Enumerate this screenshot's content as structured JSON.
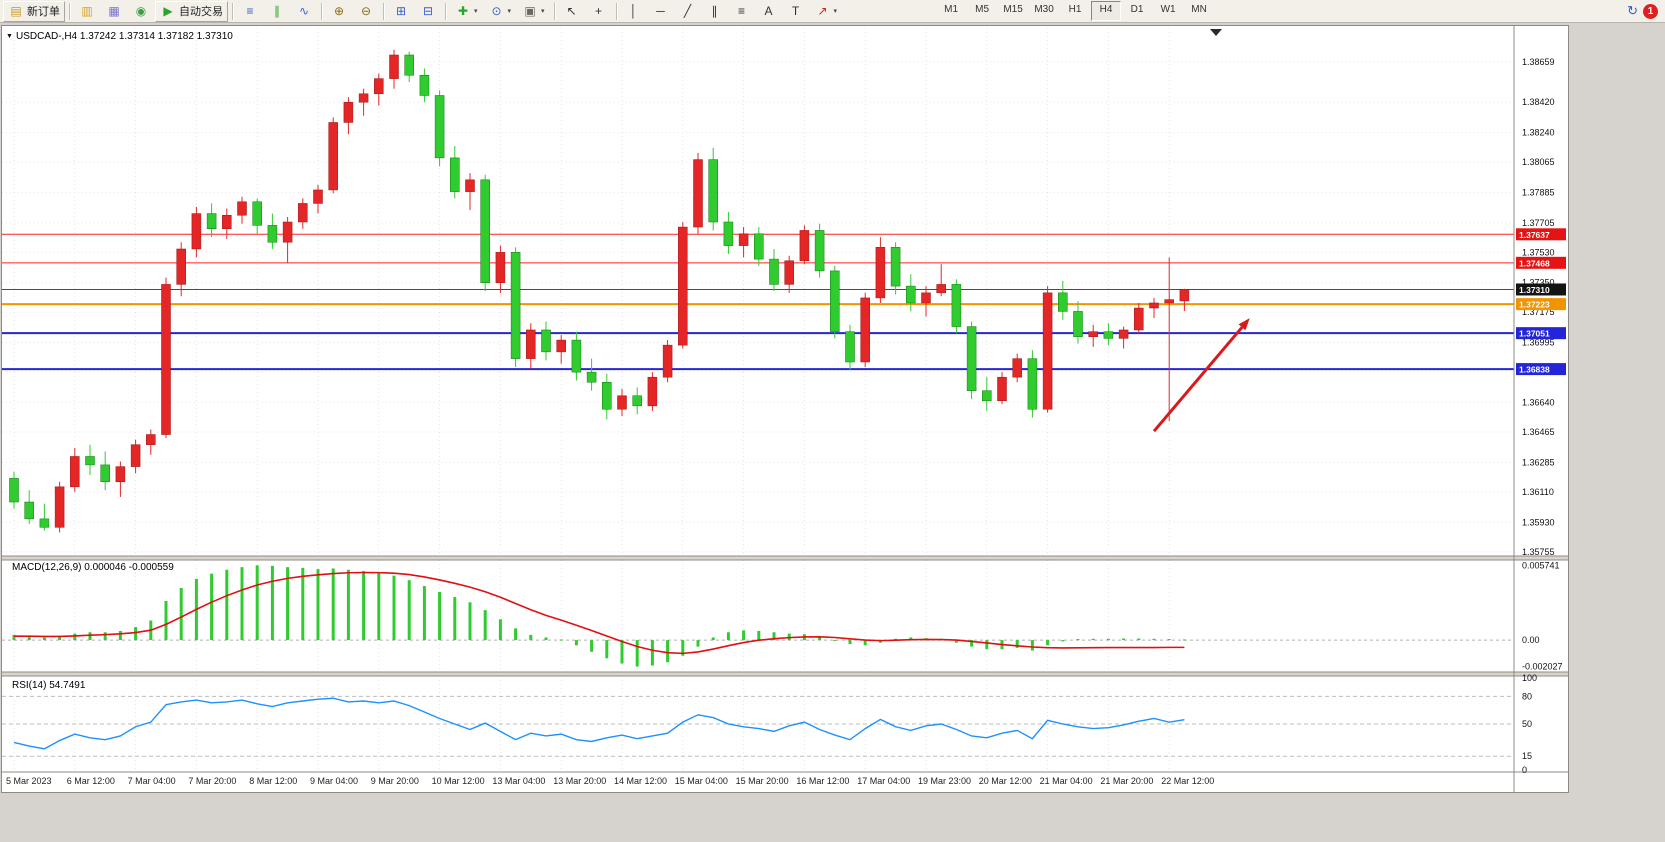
{
  "toolbar": {
    "buttons": [
      {
        "name": "new-order-button",
        "glyph": "▤",
        "color": "#c99a1e",
        "label": "新订单",
        "sep_after": true
      },
      {
        "name": "charts-stack-icon",
        "glyph": "▥",
        "color": "#d9a21f"
      },
      {
        "name": "profiles-icon",
        "glyph": "▦",
        "color": "#7a6fd0"
      },
      {
        "name": "navigator-icon",
        "glyph": "◉",
        "color": "#3d9e46"
      },
      {
        "name": "autotrade-button",
        "glyph": "▶",
        "color": "#2aa52a",
        "label": "自动交易",
        "sep_after": true
      },
      {
        "name": "bar-chart-button",
        "glyph": "≡",
        "color": "#3a5fcd"
      },
      {
        "name": "candlestick-chart-button",
        "glyph": "∥",
        "color": "#2aa52a"
      },
      {
        "name": "line-chart-button",
        "glyph": "∿",
        "color": "#3a5fcd",
        "sep_after": true
      },
      {
        "name": "zoom-in-button",
        "glyph": "⊕",
        "color": "#8a6d1c"
      },
      {
        "name": "zoom-out-button",
        "glyph": "⊖",
        "color": "#8a6d1c",
        "sep_after": true
      },
      {
        "name": "tile-windows-button",
        "glyph": "⊞",
        "color": "#3a5fcd"
      },
      {
        "name": "cascade-windows-button",
        "glyph": "⊟",
        "color": "#3a5fcd",
        "sep_after": true
      },
      {
        "name": "indicators-button",
        "glyph": "✚",
        "color": "#2aa52a",
        "caret": true
      },
      {
        "name": "periods-button",
        "glyph": "⊙",
        "color": "#3a5fcd",
        "caret": true
      },
      {
        "name": "templates-button",
        "glyph": "▣",
        "color": "#6b675f",
        "caret": true,
        "sep_after": true
      },
      {
        "name": "cursor-button",
        "glyph": "↖",
        "color": "#333333"
      },
      {
        "name": "crosshair-button",
        "glyph": "+",
        "color": "#333333",
        "sep_after": true
      },
      {
        "name": "vline-button",
        "glyph": "│",
        "color": "#333333"
      },
      {
        "name": "hline-button",
        "glyph": "─",
        "color": "#333333"
      },
      {
        "name": "trendline-button",
        "glyph": "╱",
        "color": "#333333"
      },
      {
        "name": "channel-button",
        "glyph": "∥",
        "color": "#333333"
      },
      {
        "name": "fibonacci-button",
        "glyph": "≡",
        "color": "#333333"
      },
      {
        "name": "text-button",
        "glyph": "A",
        "color": "#333333"
      },
      {
        "name": "label-button",
        "glyph": "T",
        "color": "#333333"
      },
      {
        "name": "arrows-button",
        "glyph": "↗",
        "color": "#cc2222",
        "caret": true
      }
    ],
    "timeframes": [
      "M1",
      "M5",
      "M15",
      "M30",
      "H1",
      "H4",
      "D1",
      "W1",
      "MN"
    ],
    "active_timeframe": "H4",
    "help_glyph": "↻",
    "notification_count": "1"
  },
  "icons": {
    "collapse_arrow": "▼"
  },
  "chart_data": {
    "type": "candlestick",
    "symbol": "USDCAD",
    "timeframe": "H4",
    "title": "USDCAD-,H4",
    "ohlc_line": "USDCAD-,H4  1.37242 1.37314 1.37182 1.37310",
    "open": 1.37242,
    "high": 1.37314,
    "low": 1.37182,
    "close": 1.3731,
    "bull_color": "#e42626",
    "bear_color": "#2fcb2f",
    "price_axis_labels": [
      "1.38659",
      "1.38420",
      "1.38240",
      "1.38065",
      "1.37885",
      "1.37705",
      "1.37530",
      "1.37350",
      "1.37175",
      "1.36995",
      "1.36820",
      "1.36640",
      "1.36465",
      "1.36285",
      "1.36110",
      "1.35930",
      "1.35755"
    ],
    "time_axis_labels": [
      "5 Mar 2023",
      "6 Mar 12:00",
      "7 Mar 04:00",
      "7 Mar 20:00",
      "8 Mar 12:00",
      "9 Mar 04:00",
      "9 Mar 20:00",
      "10 Mar 12:00",
      "13 Mar 04:00",
      "13 Mar 20:00",
      "14 Mar 12:00",
      "15 Mar 04:00",
      "15 Mar 20:00",
      "16 Mar 12:00",
      "17 Mar 04:00",
      "19 Mar 23:00",
      "20 Mar 12:00",
      "21 Mar 04:00",
      "21 Mar 20:00",
      "22 Mar 12:00"
    ],
    "bars_per_label": 4,
    "hlines": [
      {
        "price": 1.37637,
        "label": "1.37637",
        "color": "#ff2020",
        "width": 1,
        "tag": "#e41414"
      },
      {
        "price": 1.37468,
        "label": "1.37468",
        "color": "#ff2020",
        "width": 1,
        "tag": "#e41414"
      },
      {
        "price": 1.3731,
        "label": "1.37310",
        "color": "#4a4a4a",
        "width": 1,
        "tag": "#141414"
      },
      {
        "price": 1.37223,
        "label": "1.37223",
        "color": "#f29400",
        "width": 2,
        "tag": "#f29400"
      },
      {
        "price": 1.37051,
        "label": "1.37051",
        "color": "#2424d8",
        "width": 2,
        "tag": "#2424d8"
      },
      {
        "price": 1.36838,
        "label": "1.36838",
        "color": "#2424d8",
        "width": 2,
        "tag": "#2424d8"
      }
    ],
    "arrow": {
      "from_bar": 75,
      "from_price": 1.3647,
      "to_bar": 81.3,
      "to_price": 1.3714,
      "color": "#d81a1a"
    },
    "candles": [
      [
        1.3619,
        1.3623,
        1.3601,
        1.3605
      ],
      [
        1.3605,
        1.3612,
        1.3592,
        1.3595
      ],
      [
        1.3595,
        1.3604,
        1.3588,
        1.359
      ],
      [
        1.359,
        1.3617,
        1.3587,
        1.3614
      ],
      [
        1.3614,
        1.3637,
        1.3611,
        1.3632
      ],
      [
        1.3632,
        1.3639,
        1.3621,
        1.3627
      ],
      [
        1.3627,
        1.3635,
        1.3612,
        1.3617
      ],
      [
        1.3617,
        1.3629,
        1.3608,
        1.3626
      ],
      [
        1.3626,
        1.3642,
        1.3622,
        1.3639
      ],
      [
        1.3639,
        1.3648,
        1.3633,
        1.3645
      ],
      [
        1.3645,
        1.3738,
        1.3643,
        1.3734
      ],
      [
        1.3734,
        1.3759,
        1.3727,
        1.3755
      ],
      [
        1.3755,
        1.378,
        1.375,
        1.3776
      ],
      [
        1.3776,
        1.3782,
        1.3762,
        1.3767
      ],
      [
        1.3767,
        1.3779,
        1.3761,
        1.3775
      ],
      [
        1.3775,
        1.3786,
        1.377,
        1.3783
      ],
      [
        1.3783,
        1.3785,
        1.3764,
        1.3769
      ],
      [
        1.3769,
        1.3776,
        1.3755,
        1.3759
      ],
      [
        1.3759,
        1.3774,
        1.3747,
        1.3771
      ],
      [
        1.3771,
        1.3785,
        1.3767,
        1.3782
      ],
      [
        1.3782,
        1.3793,
        1.3776,
        1.379
      ],
      [
        1.379,
        1.3833,
        1.3788,
        1.383
      ],
      [
        1.383,
        1.3845,
        1.3823,
        1.3842
      ],
      [
        1.3842,
        1.385,
        1.3834,
        1.3847
      ],
      [
        1.3847,
        1.3859,
        1.384,
        1.3856
      ],
      [
        1.3856,
        1.3873,
        1.385,
        1.387
      ],
      [
        1.387,
        1.3872,
        1.3854,
        1.3858
      ],
      [
        1.3858,
        1.3862,
        1.3842,
        1.3846
      ],
      [
        1.3846,
        1.3849,
        1.3804,
        1.3809
      ],
      [
        1.3809,
        1.3816,
        1.3785,
        1.3789
      ],
      [
        1.3789,
        1.38,
        1.3778,
        1.3796
      ],
      [
        1.3796,
        1.3799,
        1.373,
        1.3735
      ],
      [
        1.3735,
        1.3757,
        1.3729,
        1.3753
      ],
      [
        1.3753,
        1.3756,
        1.3685,
        1.369
      ],
      [
        1.369,
        1.3711,
        1.3684,
        1.3707
      ],
      [
        1.3707,
        1.3712,
        1.3689,
        1.3694
      ],
      [
        1.3694,
        1.3704,
        1.3687,
        1.3701
      ],
      [
        1.3701,
        1.3706,
        1.3677,
        1.3682
      ],
      [
        1.3682,
        1.369,
        1.3671,
        1.3676
      ],
      [
        1.3676,
        1.3681,
        1.3654,
        1.366
      ],
      [
        1.366,
        1.3672,
        1.3656,
        1.3668
      ],
      [
        1.3668,
        1.3673,
        1.3657,
        1.3662
      ],
      [
        1.3662,
        1.3682,
        1.3659,
        1.3679
      ],
      [
        1.3679,
        1.3701,
        1.3676,
        1.3698
      ],
      [
        1.3698,
        1.3771,
        1.3696,
        1.3768
      ],
      [
        1.3768,
        1.3812,
        1.3764,
        1.3808
      ],
      [
        1.3808,
        1.3815,
        1.3766,
        1.3771
      ],
      [
        1.3771,
        1.3777,
        1.3752,
        1.3757
      ],
      [
        1.3757,
        1.3768,
        1.375,
        1.3764
      ],
      [
        1.3764,
        1.3768,
        1.3745,
        1.3749
      ],
      [
        1.3749,
        1.3755,
        1.373,
        1.3734
      ],
      [
        1.3734,
        1.3751,
        1.3729,
        1.3748
      ],
      [
        1.3748,
        1.3769,
        1.3746,
        1.3766
      ],
      [
        1.3766,
        1.377,
        1.3738,
        1.3742
      ],
      [
        1.3742,
        1.3745,
        1.3702,
        1.3706
      ],
      [
        1.3706,
        1.371,
        1.3683,
        1.3688
      ],
      [
        1.3688,
        1.3729,
        1.3685,
        1.3726
      ],
      [
        1.3726,
        1.3762,
        1.3723,
        1.3756
      ],
      [
        1.3756,
        1.3759,
        1.3728,
        1.3733
      ],
      [
        1.3733,
        1.374,
        1.3718,
        1.3723
      ],
      [
        1.3723,
        1.3733,
        1.3715,
        1.3729
      ],
      [
        1.3729,
        1.3746,
        1.3727,
        1.3734
      ],
      [
        1.3734,
        1.3737,
        1.3705,
        1.3709
      ],
      [
        1.3709,
        1.3712,
        1.3666,
        1.3671
      ],
      [
        1.3671,
        1.3679,
        1.3659,
        1.3665
      ],
      [
        1.3665,
        1.3682,
        1.3663,
        1.3679
      ],
      [
        1.3679,
        1.3693,
        1.3676,
        1.369
      ],
      [
        1.369,
        1.3695,
        1.3655,
        1.366
      ],
      [
        1.366,
        1.3733,
        1.3658,
        1.3729
      ],
      [
        1.3729,
        1.3736,
        1.3713,
        1.3718
      ],
      [
        1.3718,
        1.3724,
        1.3699,
        1.3703
      ],
      [
        1.3703,
        1.371,
        1.3697,
        1.3706
      ],
      [
        1.3706,
        1.3711,
        1.3698,
        1.3702
      ],
      [
        1.3702,
        1.3709,
        1.3696,
        1.3707
      ],
      [
        1.3707,
        1.3723,
        1.3705,
        1.372
      ],
      [
        1.372,
        1.3726,
        1.3714,
        1.3723
      ],
      [
        1.3723,
        1.375,
        1.3653,
        1.3725
      ],
      [
        1.37242,
        1.37314,
        1.37182,
        1.3731
      ]
    ],
    "indicators": {
      "macd": {
        "label": "MACD(12,26,9) 0.000046 -0.000559",
        "hist_color": "#2fcb2f",
        "signal_color": "#e01010",
        "axis_labels": [
          "0.005741",
          "0.00",
          "-0.002027"
        ],
        "axis_values": [
          0.005741,
          0,
          -0.002027
        ],
        "histogram": [
          0.0004,
          0.0003,
          0.0002,
          0.0003,
          0.0005,
          0.0006,
          0.0006,
          0.0007,
          0.001,
          0.0015,
          0.003,
          0.004,
          0.0047,
          0.0051,
          0.0054,
          0.0056,
          0.00574,
          0.0057,
          0.0056,
          0.00555,
          0.00545,
          0.0055,
          0.0054,
          0.0053,
          0.00515,
          0.00495,
          0.0046,
          0.00415,
          0.0037,
          0.0033,
          0.0029,
          0.0023,
          0.0016,
          0.0009,
          0.0004,
          0.0002,
          5e-05,
          -0.0004,
          -0.0009,
          -0.0014,
          -0.0018,
          -0.00203,
          -0.00195,
          -0.0017,
          -0.0012,
          -0.0005,
          0.0002,
          0.0006,
          0.00075,
          0.0007,
          0.0006,
          0.0005,
          0.00045,
          0.0003,
          0,
          -0.0003,
          -0.0004,
          -0.0002,
          0.0001,
          0.0002,
          0.00015,
          0.0001,
          -0.0002,
          -0.0005,
          -0.0007,
          -0.0007,
          -0.0006,
          -0.0008,
          -0.0004,
          -0.0001,
          8e-05,
          0.0001,
          0.0001,
          0.00012,
          0.00012,
          0.0001,
          8e-05,
          4.6e-05
        ],
        "signal": [
          0.0003,
          0.0003,
          0.00028,
          0.00028,
          0.00032,
          0.00038,
          0.00042,
          0.00048,
          0.00058,
          0.00076,
          0.00121,
          0.00177,
          0.00236,
          0.00291,
          0.00341,
          0.00385,
          0.00423,
          0.00452,
          0.00474,
          0.0049,
          0.00501,
          0.00511,
          0.00517,
          0.00519,
          0.00518,
          0.00514,
          0.00503,
          0.00485,
          0.00462,
          0.00436,
          0.00407,
          0.00371,
          0.00329,
          0.00281,
          0.00233,
          0.0019,
          0.00153,
          0.00114,
          0.00074,
          0.00031,
          -0.00011,
          -0.00049,
          -0.00078,
          -0.00097,
          -0.00102,
          -0.00091,
          -0.00069,
          -0.00043,
          -0.00019,
          -1e-05,
          0.00011,
          0.00019,
          0.00024,
          0.00025,
          0.0002,
          0.0001,
          0,
          -4e-05,
          -1e-05,
          3e-05,
          5e-05,
          4e-05,
          0,
          -0.0001,
          -0.00022,
          -0.00034,
          -0.00044,
          -0.00053,
          -0.00058,
          -0.0006,
          -0.00059,
          -0.00058,
          -0.00057,
          -0.00057,
          -0.00057,
          -0.00057,
          -0.00056,
          -0.000559
        ]
      },
      "rsi": {
        "label": "RSI(14) 54.7491",
        "color": "#1e90ff",
        "levels": [
          80,
          50,
          15
        ],
        "axis_labels": [
          "100",
          "80",
          "50",
          "15",
          "0"
        ],
        "axis_values": [
          100,
          80,
          50,
          15,
          0
        ],
        "values": [
          30,
          26,
          23,
          32,
          39,
          35,
          33,
          37,
          47,
          52,
          71,
          74,
          76,
          73,
          74,
          76,
          72,
          69,
          73,
          75,
          77,
          78,
          74,
          75,
          73,
          75,
          70,
          63,
          56,
          50,
          44,
          51,
          42,
          33,
          40,
          37,
          39,
          33,
          31,
          35,
          38,
          34,
          37,
          40,
          52,
          60,
          57,
          50,
          47,
          45,
          42,
          48,
          52,
          44,
          38,
          33,
          45,
          55,
          47,
          43,
          48,
          50,
          44,
          37,
          35,
          40,
          43,
          34,
          54,
          50,
          47,
          45,
          46,
          49,
          53,
          56,
          52,
          54.7491
        ]
      }
    }
  }
}
